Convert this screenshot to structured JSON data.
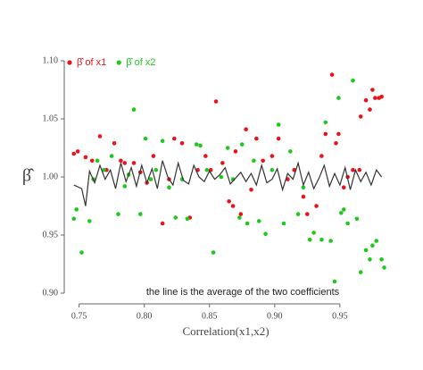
{
  "chart_data": {
    "type": "scatter",
    "x_label": "Correlation(x1,x2)",
    "y_label": "β̂",
    "annotation": "the line is the average of the two coefficients",
    "xlim": [
      0.74,
      0.985
    ],
    "ylim": [
      0.9,
      1.1
    ],
    "xticks": [
      0.75,
      {
        "value": 0.8,
        "label": "0.80"
      },
      0.85,
      {
        "value": 0.9,
        "label": "0.90"
      },
      0.95
    ],
    "yticks": [
      {
        "value": 1.1,
        "label": "1.10"
      },
      1.05,
      {
        "value": 1,
        "label": "1.00"
      },
      0.95,
      {
        "value": 0.9,
        "label": "0.90"
      }
    ],
    "legend": "top-left",
    "series": [
      {
        "name": "β̂ of x1",
        "color": "#e8141c",
        "type": "scatter",
        "x": [
          0.746,
          0.749,
          0.755,
          0.76,
          0.766,
          0.771,
          0.777,
          0.782,
          0.785,
          0.792,
          0.797,
          0.802,
          0.807,
          0.814,
          0.819,
          0.823,
          0.829,
          0.835,
          0.841,
          0.847,
          0.851,
          0.855,
          0.86,
          0.865,
          0.868,
          0.87,
          0.874,
          0.878,
          0.882,
          0.886,
          0.891,
          0.898,
          0.903,
          0.91,
          0.915,
          0.922,
          0.925,
          0.932,
          0.936,
          0.939,
          0.944,
          0.947,
          0.949,
          0.953,
          0.956,
          0.96,
          0.965,
          0.966,
          0.97,
          0.973,
          0.975,
          0.977,
          0.98,
          0.982
        ],
        "values": [
          1.02,
          1.022,
          1.017,
          1.014,
          1.035,
          1.006,
          1.029,
          1.014,
          1.012,
          1.012,
          1.004,
          0.995,
          1.018,
          0.96,
          0.998,
          1.033,
          1.029,
          0.965,
          1.006,
          1.018,
          1.006,
          1.065,
          1.012,
          0.979,
          0.975,
          1.022,
          0.968,
          1.041,
          0.989,
          1.033,
          1.014,
          1.018,
          1.033,
          0.998,
          1.006,
          0.983,
          0.968,
          0.975,
          1.018,
          1.037,
          1.088,
          1.029,
          1.037,
          0.991,
          1.0,
          1.006,
          1.006,
          1.052,
          1.066,
          1.058,
          1.075,
          1.068,
          1.068,
          1.069
        ]
      },
      {
        "name": "β̂ of x2",
        "color": "#1ec81e",
        "type": "scatter",
        "x": [
          0.746,
          0.748,
          0.752,
          0.758,
          0.761,
          0.764,
          0.769,
          0.775,
          0.78,
          0.785,
          0.788,
          0.792,
          0.797,
          0.801,
          0.805,
          0.809,
          0.814,
          0.819,
          0.824,
          0.829,
          0.833,
          0.84,
          0.843,
          0.848,
          0.853,
          0.859,
          0.864,
          0.868,
          0.873,
          0.875,
          0.879,
          0.884,
          0.888,
          0.893,
          0.898,
          0.903,
          0.907,
          0.912,
          0.918,
          0.922,
          0.927,
          0.93,
          0.936,
          0.939,
          0.943,
          0.946,
          0.949,
          0.951,
          0.953,
          0.956,
          0.96,
          0.963,
          0.966,
          0.97,
          0.973,
          0.975,
          0.978,
          0.982,
          0.984
        ],
        "values": [
          0.964,
          0.972,
          0.935,
          0.962,
          0.998,
          1.014,
          1.006,
          1.018,
          0.968,
          0.992,
          1.002,
          1.058,
          0.968,
          1.033,
          0.998,
          1.006,
          1.031,
          0.991,
          0.965,
          0.998,
          0.964,
          1.028,
          1.027,
          1.006,
          0.935,
          1.0,
          1.025,
          0.998,
          0.965,
          1.028,
          0.96,
          1.014,
          0.962,
          0.951,
          1.006,
          1.045,
          0.96,
          1.022,
          0.968,
          0.991,
          0.946,
          0.952,
          0.946,
          1.047,
          0.945,
          0.91,
          1.068,
          0.969,
          0.972,
          0.96,
          1.083,
          0.964,
          0.918,
          0.937,
          0.929,
          0.941,
          0.945,
          0.929,
          0.922
        ]
      },
      {
        "color": "#333333",
        "type": "line",
        "x": [
          0.746,
          0.752,
          0.755,
          0.758,
          0.762,
          0.766,
          0.77,
          0.774,
          0.778,
          0.782,
          0.786,
          0.79,
          0.794,
          0.798,
          0.802,
          0.806,
          0.81,
          0.814,
          0.818,
          0.822,
          0.826,
          0.83,
          0.834,
          0.838,
          0.842,
          0.846,
          0.85,
          0.854,
          0.858,
          0.862,
          0.866,
          0.87,
          0.874,
          0.878,
          0.882,
          0.886,
          0.89,
          0.894,
          0.898,
          0.902,
          0.906,
          0.91,
          0.914,
          0.918,
          0.922,
          0.926,
          0.93,
          0.934,
          0.938,
          0.942,
          0.946,
          0.95,
          0.954,
          0.958,
          0.962,
          0.966,
          0.97,
          0.974,
          0.978,
          0.982
        ],
        "values": [
          0.993,
          0.99,
          0.975,
          1.005,
          0.995,
          1.01,
          0.998,
          1.006,
          0.99,
          1.012,
          0.996,
          1.008,
          0.992,
          1.01,
          0.995,
          1.007,
          0.99,
          1.014,
          1.0,
          0.993,
          1.012,
          0.997,
          0.994,
          1.01,
          1.0,
          0.996,
          1.005,
          0.998,
          1.002,
          1.008,
          0.994,
          0.999,
          1.004,
          0.996,
          1.003,
          0.993,
          1.01,
          0.995,
          0.998,
          1.007,
          0.989,
          1.003,
          0.998,
          1.012,
          0.993,
          1.004,
          0.99,
          0.999,
          1.01,
          0.992,
          1.003,
          0.993,
          1.008,
          0.989,
          1.006,
          0.996,
          1.004,
          0.993,
          1.006,
          1.0
        ]
      }
    ]
  }
}
